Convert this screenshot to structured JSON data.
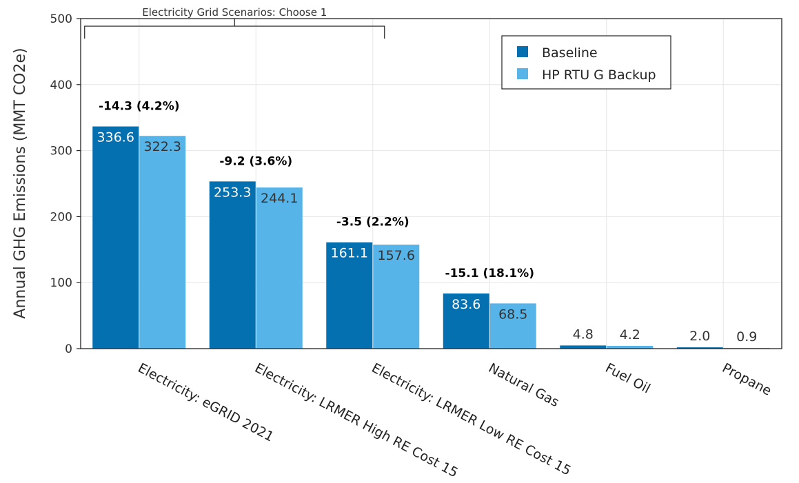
{
  "chart_data": {
    "type": "bar",
    "ylabel": "Annual GHG Emissions (MMT CO2e)",
    "xlabel": "",
    "ylim": [
      0,
      500
    ],
    "yticks": [
      0,
      100,
      200,
      300,
      400,
      500
    ],
    "grid": true,
    "legend_position": "top-right",
    "categories": [
      "Electricity: eGRID 2021",
      "Electricity: LRMER High RE Cost 15",
      "Electricity: LRMER Low RE Cost 15",
      "Natural Gas",
      "Fuel Oil",
      "Propane"
    ],
    "series": [
      {
        "name": "Baseline",
        "color": "#0570b0",
        "values": [
          336.6,
          253.3,
          161.1,
          83.6,
          4.8,
          2.0
        ],
        "labels": [
          "336.6",
          "253.3",
          "161.1",
          "83.6",
          "4.8",
          "2.0"
        ]
      },
      {
        "name": "HP RTU G Backup",
        "color": "#56b4e9",
        "values": [
          322.3,
          244.1,
          157.6,
          68.5,
          4.2,
          0.9
        ],
        "labels": [
          "322.3",
          "244.1",
          "157.6",
          "68.5",
          "4.2",
          "0.9"
        ]
      }
    ],
    "annotations": [
      {
        "category_index": 0,
        "text": "-14.3 (4.2%)"
      },
      {
        "category_index": 1,
        "text": "-9.2 (3.6%)"
      },
      {
        "category_index": 2,
        "text": "-3.5 (2.2%)"
      },
      {
        "category_index": 3,
        "text": "-15.1 (18.1%)"
      }
    ],
    "bracket_label": "Electricity Grid Scenarios: Choose 1",
    "bracket_span": [
      0,
      2
    ]
  }
}
